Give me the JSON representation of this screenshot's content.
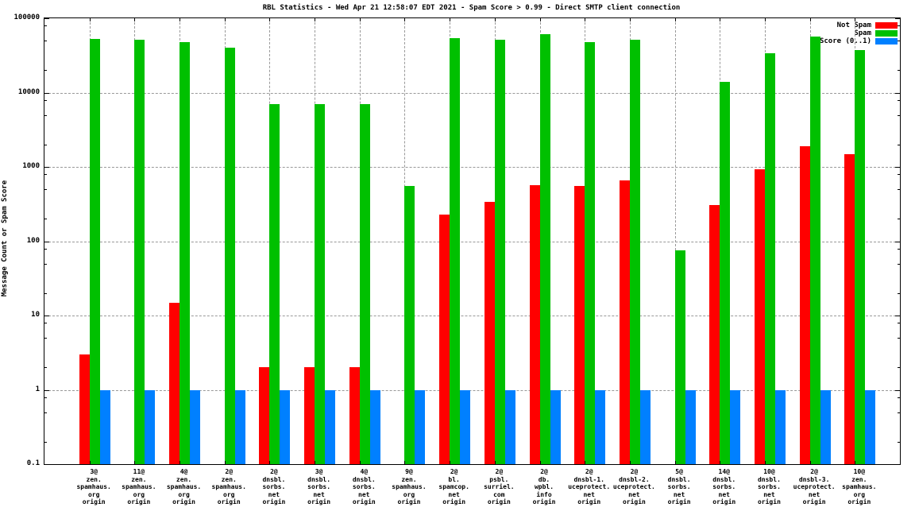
{
  "title": "RBL Statistics - Wed Apr 21 12:58:07 EDT 2021 - Spam Score > 0.99 - Direct SMTP client connection",
  "ylabel": "Message Count or Spam Score",
  "colors": {
    "not_spam": "#ff0000",
    "spam": "#00c000",
    "score": "#0080ff",
    "grid": "#999999"
  },
  "chart_data": {
    "type": "bar",
    "yscale": "log",
    "ylim": [
      0.1,
      100000
    ],
    "grid": true,
    "legend_position": "top-right",
    "ytick_labels": [
      "100000",
      "10000",
      "1000",
      "100",
      "10",
      "1",
      "0.1"
    ],
    "ytick_minor_multiples": [
      2,
      5,
      8
    ],
    "xlabel": "",
    "ylabel": "Message Count or Spam Score",
    "categories": [
      [
        "3@",
        "zen.",
        "spamhaus.",
        "org",
        "origin"
      ],
      [
        "11@",
        "zen.",
        "spamhaus.",
        "org",
        "origin"
      ],
      [
        "4@",
        "zen.",
        "spamhaus.",
        "org",
        "origin"
      ],
      [
        "2@",
        "zen.",
        "spamhaus.",
        "org",
        "origin"
      ],
      [
        "2@",
        "dnsbl.",
        "sorbs.",
        "net",
        "origin"
      ],
      [
        "3@",
        "dnsbl.",
        "sorbs.",
        "net",
        "origin"
      ],
      [
        "4@",
        "dnsbl.",
        "sorbs.",
        "net",
        "origin"
      ],
      [
        "9@",
        "zen.",
        "spamhaus.",
        "org",
        "origin"
      ],
      [
        "2@",
        "bl.",
        "spamcop.",
        "net",
        "origin"
      ],
      [
        "2@",
        "psbl.",
        "surriel.",
        "com",
        "origin"
      ],
      [
        "2@",
        "db.",
        "wpbl.",
        "info",
        "origin"
      ],
      [
        "2@",
        "dnsbl-1.",
        "uceprotect.",
        "net",
        "origin"
      ],
      [
        "2@",
        "dnsbl-2.",
        "uceprotect.",
        "net",
        "origin"
      ],
      [
        "5@",
        "dnsbl.",
        "sorbs.",
        "net",
        "origin"
      ],
      [
        "14@",
        "dnsbl.",
        "sorbs.",
        "net",
        "origin"
      ],
      [
        "10@",
        "dnsbl.",
        "sorbs.",
        "net",
        "origin"
      ],
      [
        "2@",
        "dnsbl-3.",
        "uceprotect.",
        "net",
        "origin"
      ],
      [
        "10@",
        "zen.",
        "spamhaus.",
        "org",
        "origin"
      ]
    ],
    "series": [
      {
        "name": "Not Spam",
        "color": "#ff0000",
        "values": [
          3,
          null,
          15,
          null,
          2,
          2,
          2,
          null,
          230,
          340,
          570,
          550,
          650,
          null,
          310,
          930,
          1900,
          1470
        ]
      },
      {
        "name": "Spam",
        "color": "#00c000",
        "values": [
          53000,
          51000,
          48000,
          40000,
          7000,
          7000,
          7000,
          550,
          54000,
          52000,
          61000,
          48000,
          52000,
          75,
          14000,
          34000,
          57000,
          37000
        ]
      },
      {
        "name": "Score (0..1)",
        "color": "#0080ff",
        "values": [
          1,
          1,
          1,
          1,
          1,
          1,
          1,
          1,
          1,
          1,
          1,
          1,
          1,
          1,
          1,
          1,
          1,
          1
        ]
      }
    ]
  }
}
